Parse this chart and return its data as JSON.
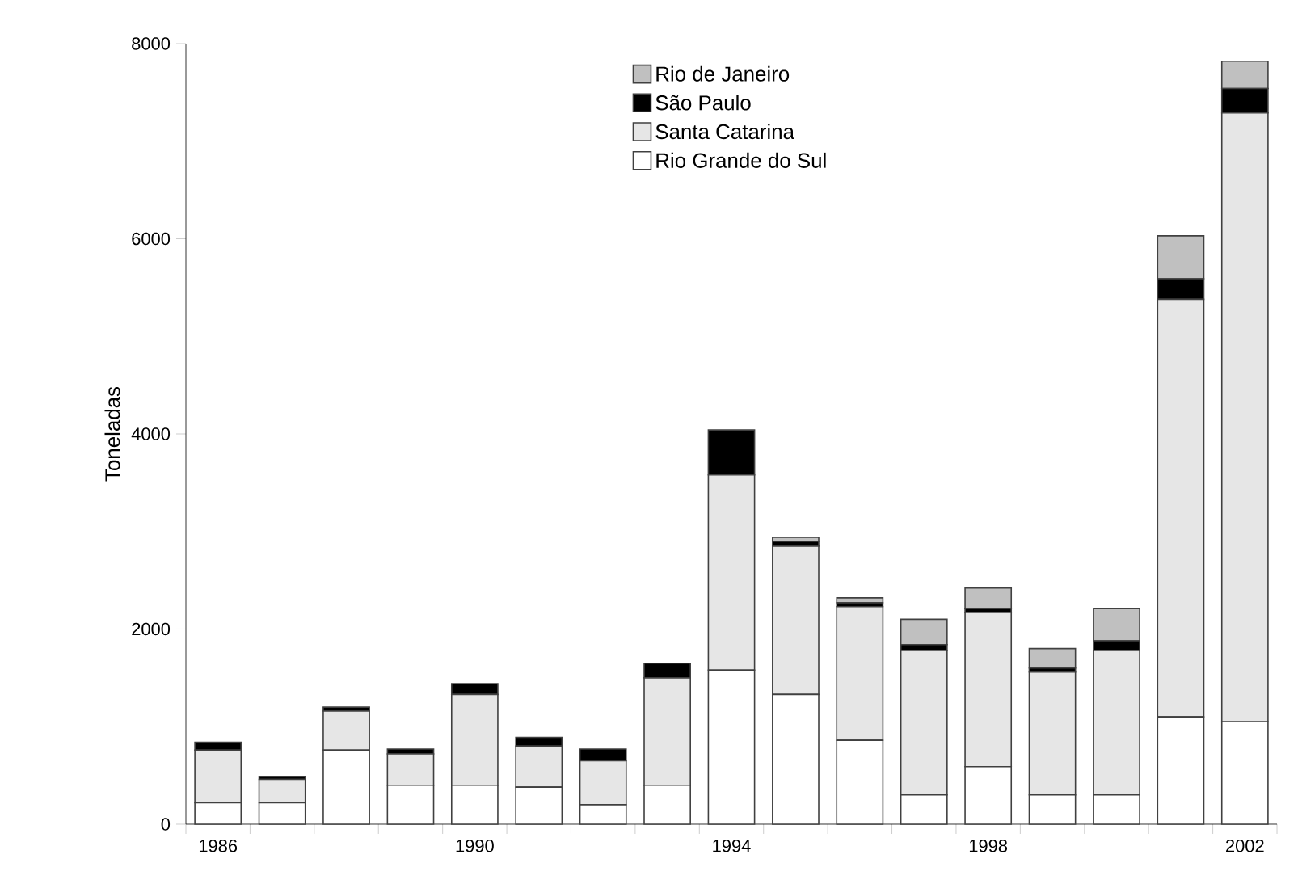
{
  "chart_data": {
    "type": "bar",
    "stacked": true,
    "ylabel": "Toneladas",
    "categories": [
      "1986",
      null,
      null,
      null,
      "1990",
      null,
      null,
      null,
      "1994",
      null,
      null,
      null,
      "1998",
      null,
      null,
      null,
      "2002"
    ],
    "series": [
      {
        "name": "Rio Grande do Sul",
        "color": "#ffffff",
        "values": [
          220,
          220,
          760,
          400,
          400,
          380,
          200,
          400,
          1580,
          1330,
          860,
          300,
          590,
          300,
          300,
          1100,
          1050
        ]
      },
      {
        "name": "Santa Catarina",
        "color": "#e6e6e6",
        "values": [
          540,
          240,
          400,
          320,
          930,
          420,
          450,
          1100,
          2000,
          1520,
          1370,
          1480,
          1580,
          1260,
          1480,
          4280,
          6240
        ]
      },
      {
        "name": "São Paulo",
        "color": "#000000",
        "values": [
          80,
          30,
          40,
          50,
          110,
          90,
          120,
          150,
          460,
          50,
          40,
          60,
          40,
          40,
          100,
          210,
          250
        ]
      },
      {
        "name": "Rio de Janeiro",
        "color": "#c0c0c0",
        "values": [
          null,
          null,
          null,
          null,
          null,
          null,
          null,
          null,
          null,
          40,
          50,
          260,
          210,
          200,
          330,
          440,
          280
        ]
      }
    ],
    "ylim": [
      0,
      8000
    ],
    "yticks": [
      0,
      2000,
      4000,
      6000,
      8000
    ],
    "grid": false,
    "legend": "top"
  }
}
